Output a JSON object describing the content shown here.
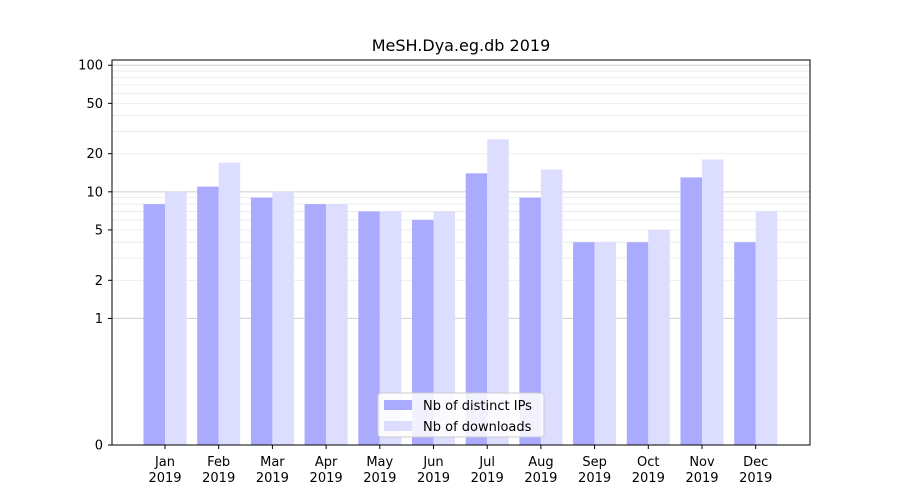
{
  "chart_data": {
    "type": "bar",
    "title": "MeSH.Dya.eg.db 2019",
    "xlabel": "",
    "ylabel": "",
    "yscale": "symlog",
    "ylim": [
      0,
      110
    ],
    "yticks": [
      0,
      1,
      2,
      5,
      10,
      20,
      50,
      100
    ],
    "ytick_labels": [
      "0",
      "1",
      "2",
      "5",
      "10",
      "20",
      "50",
      "100"
    ],
    "categories": [
      [
        "Jan",
        "2019"
      ],
      [
        "Feb",
        "2019"
      ],
      [
        "Mar",
        "2019"
      ],
      [
        "Apr",
        "2019"
      ],
      [
        "May",
        "2019"
      ],
      [
        "Jun",
        "2019"
      ],
      [
        "Jul",
        "2019"
      ],
      [
        "Aug",
        "2019"
      ],
      [
        "Sep",
        "2019"
      ],
      [
        "Oct",
        "2019"
      ],
      [
        "Nov",
        "2019"
      ],
      [
        "Dec",
        "2019"
      ]
    ],
    "series": [
      {
        "name": "Nb of distinct IPs",
        "color": "#aaaaff",
        "values": [
          8,
          11,
          9,
          8,
          7,
          6,
          14,
          9,
          4,
          4,
          13,
          4
        ]
      },
      {
        "name": "Nb of downloads",
        "color": "#ddddff",
        "values": [
          10,
          17,
          10,
          8,
          7,
          7,
          26,
          15,
          4,
          5,
          18,
          7
        ]
      }
    ],
    "grid": true,
    "legend_position": "bottom-center"
  }
}
